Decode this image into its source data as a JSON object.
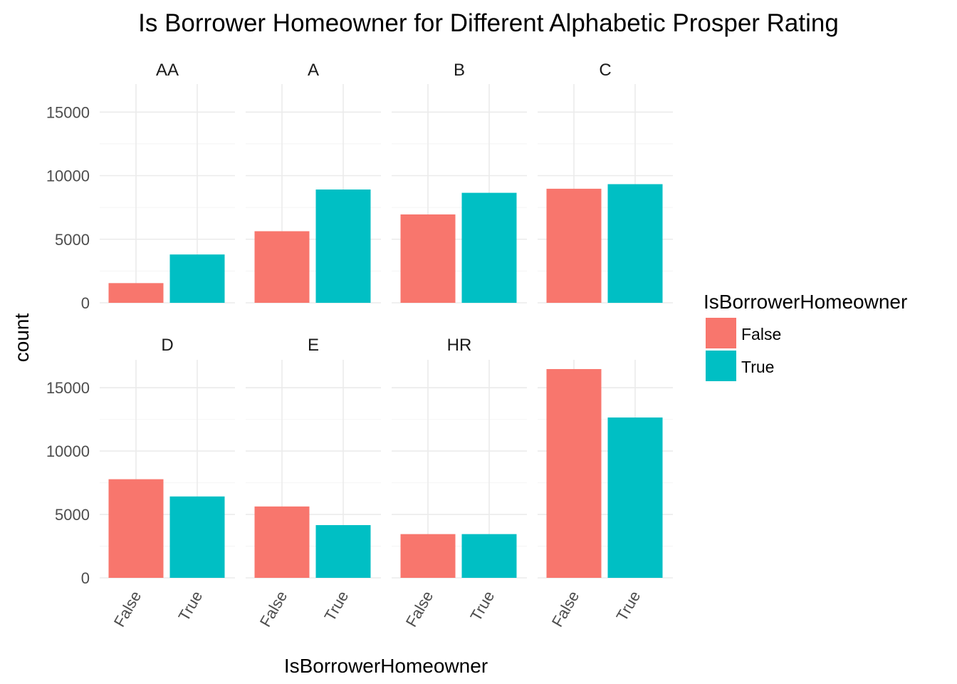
{
  "chart_data": {
    "type": "bar",
    "title": "Is Borrower Homeowner for Different Alphabetic Prosper Rating",
    "xlabel": "IsBorrowerHomeowner",
    "ylabel": "count",
    "ylim": [
      0,
      17200
    ],
    "yticks": [
      0,
      5000,
      10000,
      15000
    ],
    "ytick_labels": [
      "0",
      "5000",
      "10000",
      "15000"
    ],
    "categories": [
      "False",
      "True"
    ],
    "grid": true,
    "legend": {
      "title": "IsBorrowerHomeowner",
      "position": "right",
      "entries": [
        {
          "label": "False",
          "color": "#F8766D"
        },
        {
          "label": "True",
          "color": "#00BFC4"
        }
      ]
    },
    "panels": [
      {
        "label": "AA",
        "values": [
          1550,
          3800
        ]
      },
      {
        "label": "A",
        "values": [
          5630,
          8910
        ]
      },
      {
        "label": "B",
        "values": [
          6950,
          8650
        ]
      },
      {
        "label": "C",
        "values": [
          8970,
          9330
        ]
      },
      {
        "label": "D",
        "values": [
          7780,
          6420
        ]
      },
      {
        "label": "E",
        "values": [
          5630,
          4160
        ]
      },
      {
        "label": "HR",
        "values": [
          3450,
          3450
        ]
      },
      {
        "label": "",
        "values": [
          16470,
          12650
        ]
      }
    ]
  }
}
